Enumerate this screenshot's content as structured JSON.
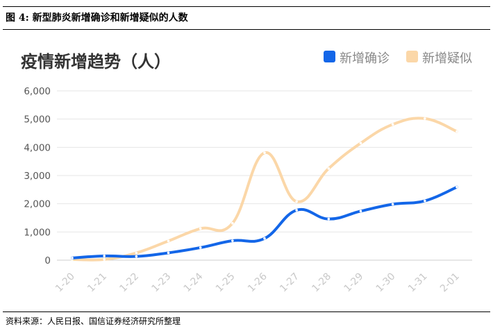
{
  "figure_caption": "图 4:  新型肺炎新增确诊和新增疑似的人数",
  "source_note": "资料来源：人民日报、国信证券经济研究所整理",
  "chart_data": {
    "type": "line",
    "title": "疫情新增趋势（人）",
    "xlabel": "",
    "ylabel": "",
    "categories": [
      "1-20",
      "1-21",
      "1-22",
      "1-23",
      "1-24",
      "1-25",
      "1-26",
      "1-27",
      "1-28",
      "1-29",
      "1-30",
      "1-31",
      "2-01"
    ],
    "series": [
      {
        "name": "新增确诊",
        "color": "#1366e8",
        "values": [
          77,
          149,
          131,
          259,
          444,
          688,
          769,
          1771,
          1459,
          1737,
          1982,
          2102,
          2590
        ]
      },
      {
        "name": "新增疑似",
        "color": "#fbd7a8",
        "values": [
          27,
          26,
          257,
          680,
          1118,
          1309,
          3806,
          2077,
          3248,
          4148,
          4812,
          5019,
          4562
        ]
      }
    ],
    "ylim": [
      0,
      6000
    ],
    "yticks": [
      "0",
      "1,000",
      "2,000",
      "3,000",
      "4,000",
      "5,000",
      "6,000"
    ],
    "grid": true,
    "legend_position": "top-right",
    "smooth": true
  }
}
